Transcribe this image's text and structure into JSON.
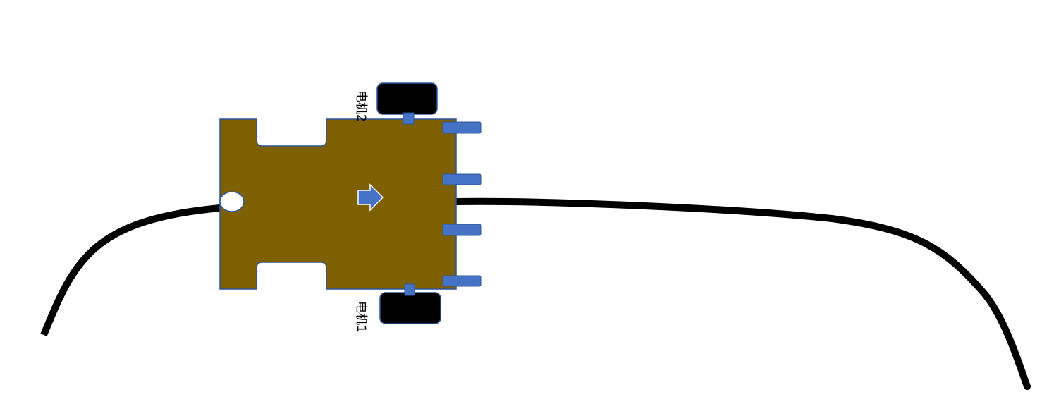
{
  "diagram": {
    "motor_top_label": "电机2",
    "motor_bottom_label": "电机1"
  },
  "colors": {
    "chassis": "#7f6000",
    "chassis_outline": "#2f5597",
    "sensor": "#4472c4",
    "wheel": "#000000",
    "track_line": "#000000",
    "background": "#ffffff"
  },
  "icons": {
    "direction": "right-arrow-icon",
    "caster": "caster-wheel"
  }
}
